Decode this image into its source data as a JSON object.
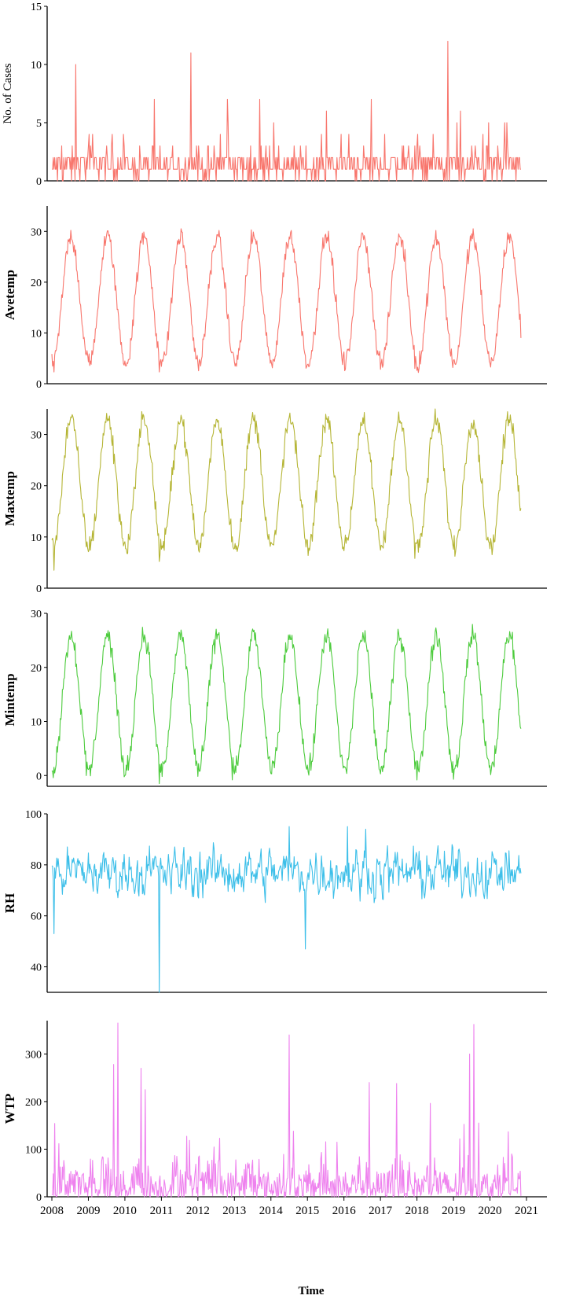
{
  "chart_data": [
    {
      "type": "line",
      "ylabel": "No. of Cases",
      "color": "#F8766D",
      "ylim": [
        0,
        15
      ],
      "yticks": [
        0,
        5,
        10,
        15
      ],
      "xlim": [
        2008,
        2021
      ],
      "trend": {
        "mean": 1.3,
        "spread": 1.2,
        "kind": "count",
        "min": 0
      },
      "peaks": [
        [
          2008.65,
          10
        ],
        [
          2011.8,
          11
        ],
        [
          2012.8,
          7
        ],
        [
          2013.7,
          7
        ],
        [
          2016.75,
          7
        ],
        [
          2018.85,
          12
        ],
        [
          2019.2,
          6
        ]
      ],
      "dips": []
    },
    {
      "type": "line",
      "ylabel": "Avetemp",
      "color": "#F8766D",
      "ylim": [
        0,
        35
      ],
      "yticks": [
        0,
        10,
        20,
        30
      ],
      "xlim": [
        2008,
        2021
      ],
      "trend": {
        "mean": 16.5,
        "amp": 12.5,
        "kind": "seasonal",
        "noise": 1.6
      },
      "peaks": [],
      "dips": [
        [
          2008.05,
          2.3
        ],
        [
          2010.95,
          2.3
        ],
        [
          2017.95,
          3
        ]
      ]
    },
    {
      "type": "line",
      "ylabel": "Maxtemp",
      "color": "#B5B535",
      "ylim": [
        0,
        35
      ],
      "yticks": [
        0,
        10,
        20,
        30
      ],
      "xlim": [
        2008,
        2021
      ],
      "trend": {
        "mean": 20.5,
        "amp": 12.5,
        "kind": "seasonal",
        "noise": 1.8
      },
      "peaks": [
        [
          2013.5,
          34.3
        ],
        [
          2017.5,
          34.4
        ]
      ],
      "dips": [
        [
          2008.05,
          3.5
        ],
        [
          2010.95,
          5.2
        ],
        [
          2017.95,
          5.8
        ]
      ]
    },
    {
      "type": "line",
      "ylabel": "Mintemp",
      "color": "#4CCB3C",
      "ylim": [
        -2,
        30
      ],
      "yticks": [
        0,
        10,
        20,
        30
      ],
      "xlim": [
        2008,
        2021
      ],
      "trend": {
        "mean": 13.5,
        "amp": 12.5,
        "kind": "seasonal",
        "noise": 1.6
      },
      "peaks": [],
      "dips": [
        [
          2010.95,
          -1.5
        ],
        [
          2012.95,
          -0.8
        ],
        [
          2008.95,
          0
        ]
      ]
    },
    {
      "type": "line",
      "ylabel": "RH",
      "color": "#3DBFE9",
      "ylim": [
        30,
        100
      ],
      "yticks": [
        40,
        60,
        80,
        100
      ],
      "xlim": [
        2008,
        2021
      ],
      "trend": {
        "mean": 77,
        "spread": 7,
        "kind": "noisy",
        "min": 45,
        "max": 95
      },
      "peaks": [
        [
          2014.5,
          95
        ],
        [
          2016.1,
          95
        ],
        [
          2016.6,
          94
        ]
      ],
      "dips": [
        [
          2010.95,
          30
        ],
        [
          2014.95,
          47
        ],
        [
          2008.05,
          53
        ]
      ]
    },
    {
      "type": "line",
      "ylabel": "WTP",
      "color": "#EE82EE",
      "ylim": [
        0,
        370
      ],
      "yticks": [
        0,
        100,
        200,
        300
      ],
      "xlim": [
        2008,
        2021
      ],
      "trend": {
        "mean": 35,
        "spread": 30,
        "kind": "precip",
        "min": 0
      },
      "peaks": [
        [
          2009.7,
          278
        ],
        [
          2009.8,
          365
        ],
        [
          2010.45,
          270
        ],
        [
          2010.55,
          225
        ],
        [
          2014.5,
          340
        ],
        [
          2016.7,
          240
        ],
        [
          2017.45,
          238
        ],
        [
          2019.45,
          300
        ],
        [
          2019.55,
          362
        ],
        [
          2019.7,
          155
        ]
      ],
      "dips": []
    }
  ],
  "x_axis": {
    "tick_labels": [
      "2008",
      "2009",
      "2010",
      "2011",
      "2012",
      "2013",
      "2014",
      "2015",
      "2016",
      "2017",
      "2018",
      "2019",
      "2020",
      "2021"
    ],
    "label": "Time"
  }
}
